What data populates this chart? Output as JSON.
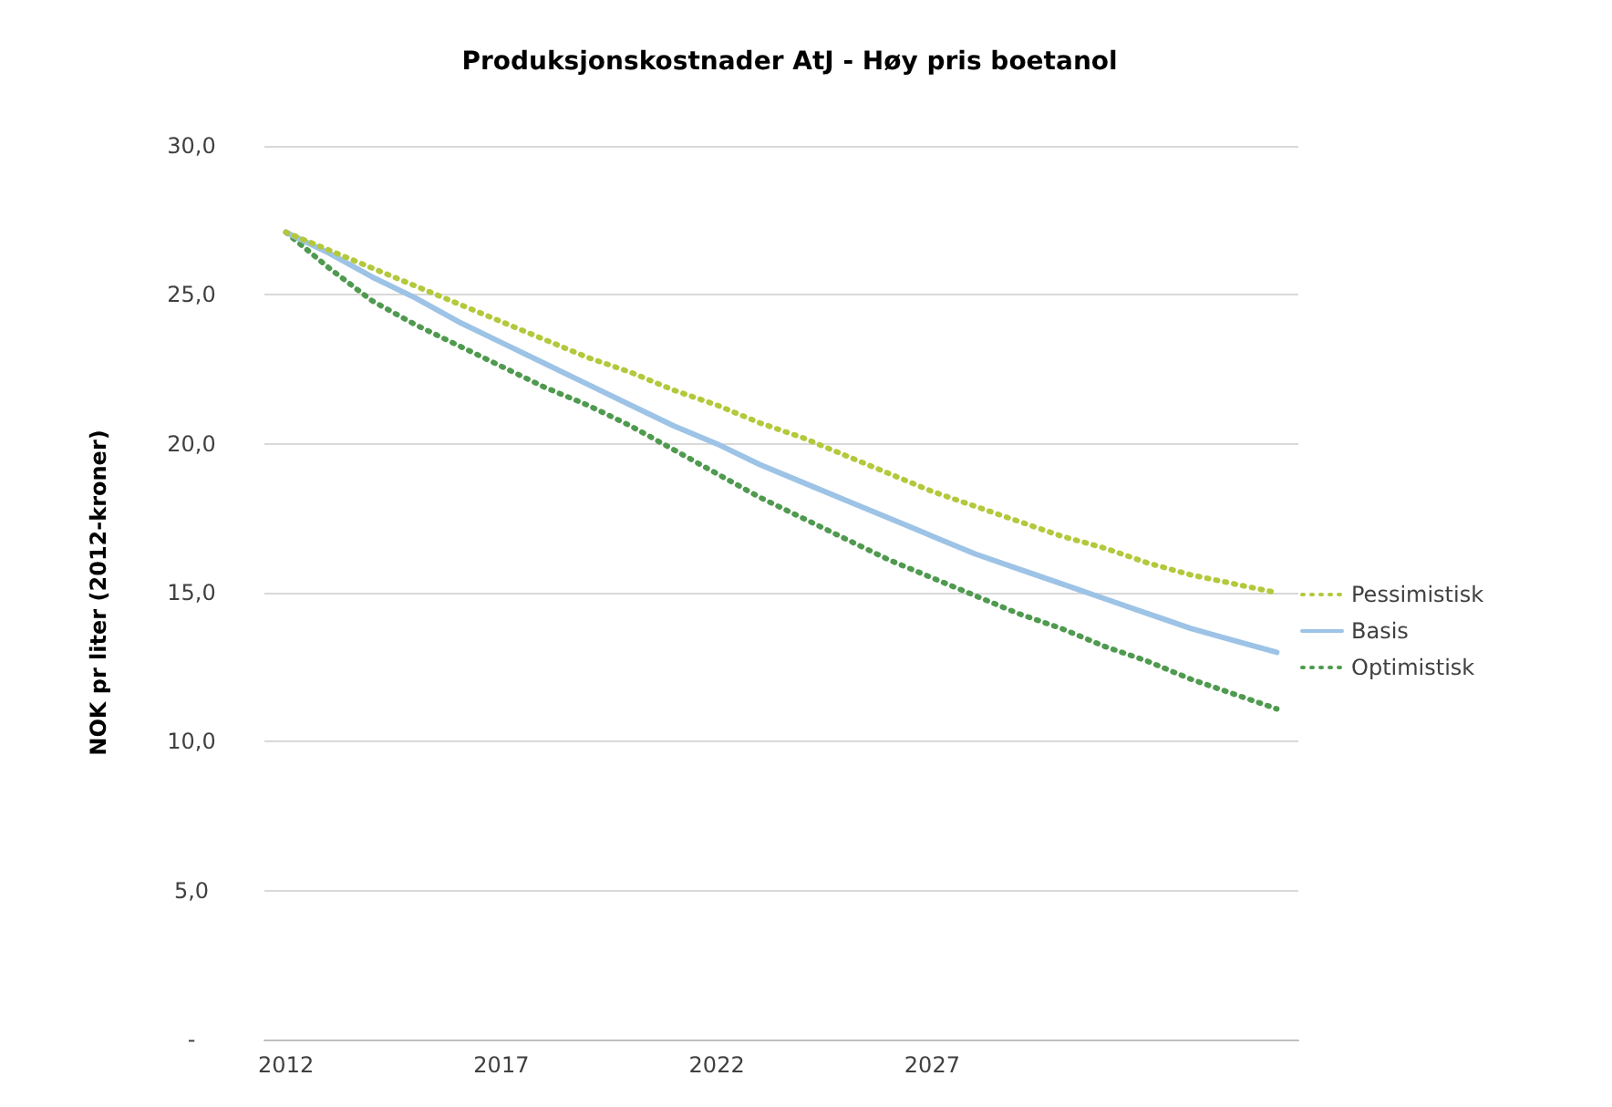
{
  "chart_data": {
    "type": "line",
    "title": "Produksjonskostnader AtJ - Høy pris boetanol",
    "ylabel": "NOK pr liter (2012-kroner)",
    "categories": [
      "2012",
      null,
      null,
      null,
      null,
      "2017",
      null,
      null,
      null,
      null,
      "2022",
      null,
      null,
      null,
      null,
      "2027",
      null,
      null,
      null,
      null,
      null,
      null,
      null,
      null
    ],
    "series": [
      {
        "name": "Pessimistisk",
        "color": "#b4c83c",
        "line_style": "dotted",
        "values": [
          27.1,
          26.5,
          25.9,
          25.3,
          24.7,
          24.1,
          23.5,
          22.9,
          22.4,
          21.8,
          21.3,
          20.7,
          20.2,
          19.6,
          19.0,
          18.4,
          17.9,
          17.4,
          16.9,
          16.5,
          16.0,
          15.6,
          15.3,
          15.0
        ]
      },
      {
        "name": "Basis",
        "color": "#9dc3e6",
        "line_style": "solid",
        "values": [
          27.1,
          26.4,
          25.6,
          24.9,
          24.1,
          23.4,
          22.7,
          22.0,
          21.3,
          20.6,
          20.0,
          19.3,
          18.7,
          18.1,
          17.5,
          16.9,
          16.3,
          15.8,
          15.3,
          14.8,
          14.3,
          13.8,
          13.4,
          13.0
        ]
      },
      {
        "name": "Optimistisk",
        "color": "#4f9a4f",
        "line_style": "dotted",
        "values": [
          27.1,
          25.9,
          24.8,
          24.0,
          23.3,
          22.6,
          21.9,
          21.3,
          20.6,
          19.8,
          19.0,
          18.2,
          17.5,
          16.8,
          16.1,
          15.5,
          14.9,
          14.3,
          13.8,
          13.2,
          12.7,
          12.1,
          11.6,
          11.1
        ]
      }
    ],
    "ylim": [
      0,
      30
    ],
    "yticks": [
      {
        "value": 0,
        "label": "-"
      },
      {
        "value": 5,
        "label": "5,0"
      },
      {
        "value": 10,
        "label": "10,0"
      },
      {
        "value": 15,
        "label": "15,0"
      },
      {
        "value": 20,
        "label": "20,0"
      },
      {
        "value": 25,
        "label": "25,0"
      },
      {
        "value": 30,
        "label": "30,0"
      }
    ],
    "grid": "y",
    "legend": "right",
    "marker": "none"
  }
}
